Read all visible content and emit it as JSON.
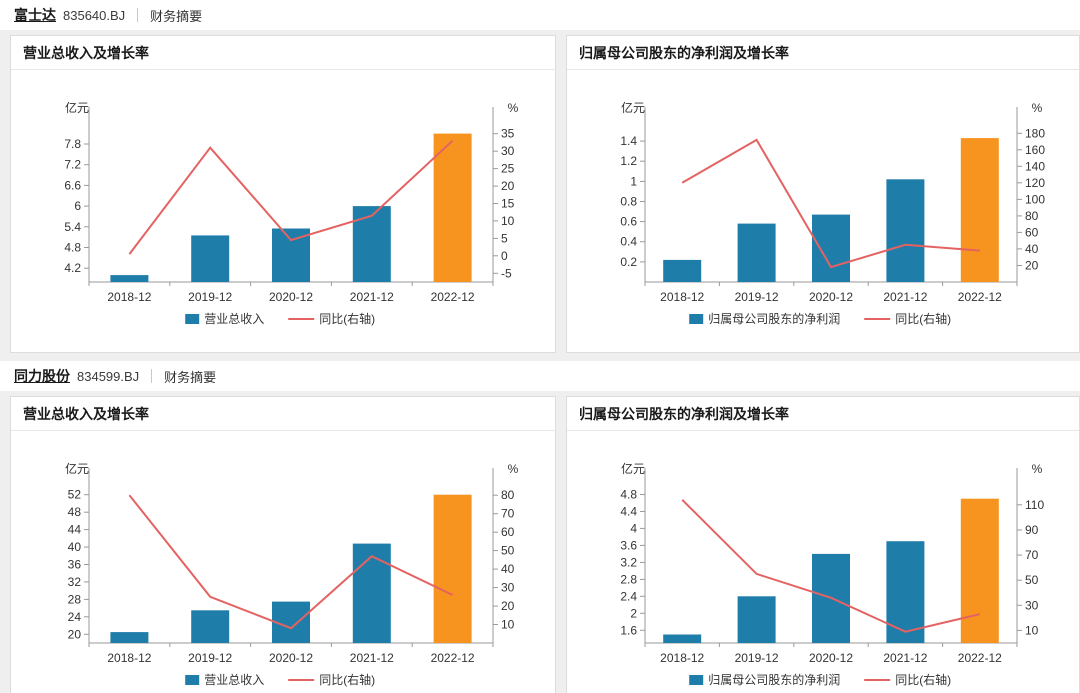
{
  "colors": {
    "bar": "#1F7EA9",
    "bar_highlight": "#F7941F",
    "line": "#E46262",
    "axis": "#9a9a9a",
    "text": "#333333"
  },
  "sections": [
    {
      "company": "富士达",
      "code": "835640.BJ",
      "tab": "财务摘要"
    },
    {
      "company": "同力股份",
      "code": "834599.BJ",
      "tab": "财务摘要"
    }
  ],
  "chart_data": [
    {
      "type": "bar",
      "company": "富士达",
      "title": "营业总收入及增长率",
      "left_axis_unit": "亿元",
      "right_axis_unit": "%",
      "categories": [
        "2018-12",
        "2019-12",
        "2020-12",
        "2021-12",
        "2022-12"
      ],
      "series": [
        {
          "name": "营业总收入",
          "type": "bar",
          "axis": "left",
          "values": [
            4.0,
            5.15,
            5.35,
            6.0,
            8.1
          ]
        },
        {
          "name": "同比(右轴)",
          "type": "line",
          "axis": "right",
          "values": [
            0.5,
            31,
            4.5,
            11.5,
            33
          ]
        }
      ],
      "highlight_index": 4,
      "left_axis": {
        "min": 3.8,
        "max": 8.35,
        "ticks": [
          4.2,
          4.8,
          5.4,
          6,
          6.6,
          7.2,
          7.8
        ]
      },
      "right_axis": {
        "min": -7.5,
        "max": 37.5,
        "ticks": [
          -5,
          0,
          5,
          10,
          15,
          20,
          25,
          30,
          35
        ]
      },
      "legend_position": "bottom",
      "grid": false
    },
    {
      "type": "bar",
      "company": "富士达",
      "title": "归属母公司股东的净利润及增长率",
      "left_axis_unit": "亿元",
      "right_axis_unit": "%",
      "categories": [
        "2018-12",
        "2019-12",
        "2020-12",
        "2021-12",
        "2022-12"
      ],
      "series": [
        {
          "name": "归属母公司股东的净利润",
          "type": "bar",
          "axis": "left",
          "values": [
            0.22,
            0.58,
            0.67,
            1.02,
            1.43
          ]
        },
        {
          "name": "同比(右轴)",
          "type": "line",
          "axis": "right",
          "values": [
            120,
            172,
            18,
            45,
            38
          ]
        }
      ],
      "highlight_index": 4,
      "left_axis": {
        "min": 0,
        "max": 1.56,
        "ticks": [
          0.2,
          0.4,
          0.6,
          0.8,
          1,
          1.2,
          1.4
        ]
      },
      "right_axis": {
        "min": 0,
        "max": 190,
        "ticks": [
          20,
          40,
          60,
          80,
          100,
          120,
          140,
          160,
          180
        ]
      },
      "legend_position": "bottom",
      "grid": false
    },
    {
      "type": "bar",
      "company": "同力股份",
      "title": "营业总收入及增长率",
      "left_axis_unit": "亿元",
      "right_axis_unit": "%",
      "categories": [
        "2018-12",
        "2019-12",
        "2020-12",
        "2021-12",
        "2022-12"
      ],
      "series": [
        {
          "name": "营业总收入",
          "type": "bar",
          "axis": "left",
          "values": [
            20.5,
            25.5,
            27.5,
            40.8,
            52
          ]
        },
        {
          "name": "同比(右轴)",
          "type": "line",
          "axis": "right",
          "values": [
            80,
            25,
            8,
            47,
            26
          ]
        }
      ],
      "highlight_index": 4,
      "left_axis": {
        "min": 18,
        "max": 54,
        "ticks": [
          20,
          24,
          28,
          32,
          36,
          40,
          44,
          48,
          52
        ]
      },
      "right_axis": {
        "min": 0,
        "max": 85,
        "ticks": [
          10,
          20,
          30,
          40,
          50,
          60,
          70,
          80
        ]
      },
      "legend_position": "bottom",
      "grid": false
    },
    {
      "type": "bar",
      "company": "同力股份",
      "title": "归属母公司股东的净利润及增长率",
      "left_axis_unit": "亿元",
      "right_axis_unit": "%",
      "categories": [
        "2018-12",
        "2019-12",
        "2020-12",
        "2021-12",
        "2022-12"
      ],
      "series": [
        {
          "name": "归属母公司股东的净利润",
          "type": "bar",
          "axis": "left",
          "values": [
            1.5,
            2.4,
            3.4,
            3.7,
            4.7
          ]
        },
        {
          "name": "同比(右轴)",
          "type": "line",
          "axis": "right",
          "values": [
            114,
            55,
            36,
            9,
            23
          ]
        }
      ],
      "highlight_index": 4,
      "left_axis": {
        "min": 1.3,
        "max": 5.0,
        "ticks": [
          1.6,
          2,
          2.4,
          2.8,
          3.2,
          3.6,
          4,
          4.4,
          4.8
        ]
      },
      "right_axis": {
        "min": 0,
        "max": 125,
        "ticks": [
          10,
          30,
          50,
          70,
          90,
          110
        ]
      },
      "legend_position": "bottom",
      "grid": false
    }
  ]
}
